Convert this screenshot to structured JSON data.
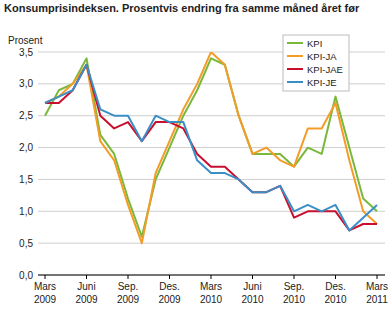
{
  "chart_data": {
    "type": "line",
    "title": "Konsumprisindeksen. Prosentvis endring fra samme måned året før",
    "y_label": "Prosent",
    "categories": [
      "Mars 2009",
      null,
      null,
      "Juni 2009",
      null,
      null,
      "Sep. 2009",
      null,
      null,
      "Des. 2009",
      null,
      null,
      "Mars 2010",
      null,
      null,
      "Juni 2010",
      null,
      null,
      "Sep. 2010",
      null,
      null,
      "Des. 2010",
      null,
      null,
      "Mars 2011"
    ],
    "series": [
      {
        "name": "KPI",
        "color": "#7ab83c",
        "values": [
          2.5,
          2.9,
          3.0,
          3.4,
          2.2,
          1.9,
          1.2,
          0.6,
          1.5,
          2.0,
          2.5,
          2.9,
          3.4,
          3.3,
          2.5,
          1.9,
          1.9,
          1.9,
          1.7,
          2.0,
          1.9,
          2.8,
          2.0,
          1.2,
          1.0
        ]
      },
      {
        "name": "KPI-JA",
        "color": "#f39c28",
        "values": [
          2.7,
          2.8,
          3.0,
          3.3,
          2.1,
          1.8,
          1.1,
          0.5,
          1.6,
          2.1,
          2.6,
          3.0,
          3.5,
          3.3,
          2.5,
          1.9,
          2.0,
          1.8,
          1.7,
          2.3,
          2.3,
          2.7,
          1.8,
          1.0,
          0.8
        ]
      },
      {
        "name": "KPI-JAE",
        "color": "#c8102e",
        "values": [
          2.7,
          2.7,
          2.9,
          3.3,
          2.5,
          2.3,
          2.4,
          2.1,
          2.4,
          2.4,
          2.3,
          1.9,
          1.7,
          1.7,
          1.5,
          1.3,
          1.3,
          1.4,
          0.9,
          1.0,
          1.0,
          1.0,
          0.7,
          0.8,
          0.8
        ]
      },
      {
        "name": "KPI-JE",
        "color": "#3b8fc7",
        "values": [
          2.7,
          2.8,
          2.9,
          3.3,
          2.6,
          2.5,
          2.5,
          2.1,
          2.5,
          2.4,
          2.4,
          1.8,
          1.6,
          1.6,
          1.5,
          1.3,
          1.3,
          1.4,
          1.0,
          1.1,
          1.0,
          1.1,
          0.7,
          0.9,
          1.1
        ]
      }
    ],
    "ylim": [
      0,
      3.5
    ],
    "yticks": [
      {
        "value": 0,
        "label": "0,0"
      },
      {
        "value": 0.5,
        "label": "0,5"
      },
      {
        "value": 1,
        "label": "1,0"
      },
      {
        "value": 1.5,
        "label": "1,5"
      },
      {
        "value": 2,
        "label": "2,0"
      },
      {
        "value": 2.5,
        "label": "2,5"
      },
      {
        "value": 3,
        "label": "3,0"
      },
      {
        "value": 3.5,
        "label": "3,5"
      }
    ],
    "grid": true,
    "legend": "upper right"
  }
}
